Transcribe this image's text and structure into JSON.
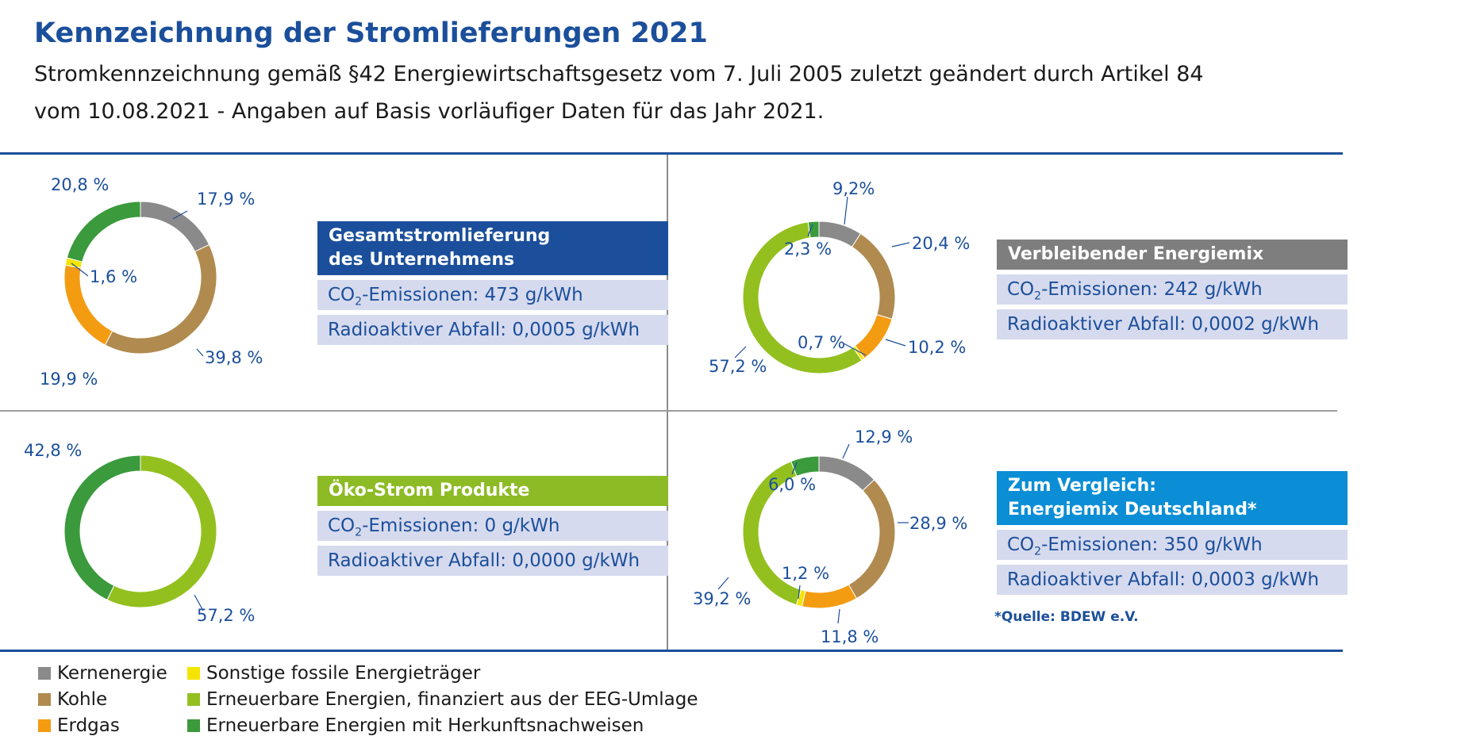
{
  "header": {
    "title": "Kennzeichnung der Stromlieferungen 2021",
    "subtitle_line1": "Stromkennzeichnung gemäß §42 Energiewirtschaftsgesetz vom 7. Juli 2005 zuletzt geändert durch Artikel 84",
    "subtitle_line2": "vom 10.08.2021 - Angaben auf Basis vorläufiger Daten für das Jahr 2021."
  },
  "colors": {
    "kernenergie": "#8a8a8a",
    "kohle": "#b08a4f",
    "erdgas": "#f39c12",
    "sonstige": "#f5e400",
    "eeg": "#93c01f",
    "herkunft": "#3a9a3c",
    "title_blue": "#1b4f9b"
  },
  "chart_data": [
    {
      "type": "pie",
      "style": "donut",
      "categories": [
        "Kernenergie",
        "Kohle",
        "Erdgas",
        "Sonstige fossile Energieträger",
        "Erneuerbare Energien mit Herkunftsnachweisen"
      ],
      "values": [
        17.9,
        39.8,
        19.9,
        1.6,
        20.8
      ],
      "value_labels": [
        "17,9 %",
        "39,8 %",
        "19,9 %",
        "1,6 %",
        "20,8 %"
      ],
      "card": {
        "title_line1": "Gesamtstromlieferung",
        "title_line2": "des Unternehmens",
        "co2_label": "CO",
        "co2_sub": "2",
        "co2_value": "-Emissionen: 473 g/kWh",
        "waste": "Radioaktiver Abfall: 0,0005 g/kWh"
      }
    },
    {
      "type": "pie",
      "style": "donut",
      "categories": [
        "Kernenergie",
        "Kohle",
        "Erdgas",
        "Sonstige fossile Energieträger",
        "Erneuerbare Energien, finanziert aus der EEG-Umlage",
        "Erneuerbare Energien mit Herkunftsnachweisen"
      ],
      "values": [
        9.2,
        20.4,
        10.2,
        0.7,
        57.2,
        2.3
      ],
      "value_labels": [
        "9,2%",
        "20,4 %",
        "10,2 %",
        "0,7 %",
        "57,2 %",
        "2,3 %"
      ],
      "card": {
        "title_line1": "Verbleibender Energiemix",
        "co2_label": "CO",
        "co2_sub": "2",
        "co2_value": "-Emissionen: 242 g/kWh",
        "waste": "Radioaktiver Abfall:  0,0002 g/kWh"
      }
    },
    {
      "type": "pie",
      "style": "donut",
      "categories": [
        "Erneuerbare Energien, finanziert aus der EEG-Umlage",
        "Erneuerbare Energien mit Herkunftsnachweisen"
      ],
      "values": [
        57.2,
        42.8
      ],
      "value_labels": [
        "57,2 %",
        "42,8 %"
      ],
      "card": {
        "title_line1": "Öko-Strom Produkte",
        "co2_label": "CO",
        "co2_sub": "2",
        "co2_value": "-Emissionen: 0 g/kWh",
        "waste": "Radioaktiver Abfall:  0,0000 g/kWh"
      }
    },
    {
      "type": "pie",
      "style": "donut",
      "categories": [
        "Kernenergie",
        "Kohle",
        "Erdgas",
        "Sonstige fossile Energieträger",
        "Erneuerbare Energien, finanziert aus der EEG-Umlage",
        "Erneuerbare Energien mit Herkunftsnachweisen"
      ],
      "values": [
        12.9,
        28.9,
        11.8,
        1.2,
        39.2,
        6.0
      ],
      "value_labels": [
        "12,9 %",
        "28,9 %",
        "11,8 %",
        "1,2 %",
        "39,2 %",
        "6,0 %"
      ],
      "card": {
        "title_line1": "Zum Vergleich:",
        "title_line2": "Energiemix Deutschland*",
        "co2_label": "CO",
        "co2_sub": "2",
        "co2_value": "-Emissionen: 350 g/kWh",
        "waste": "Radioaktiver Abfall:  0,0003 g/kWh"
      }
    }
  ],
  "source_note": "*Quelle: BDEW e.V.",
  "legend": [
    {
      "label": "Kernenergie",
      "color": "#8a8a8a"
    },
    {
      "label": "Kohle",
      "color": "#b08a4f"
    },
    {
      "label": "Erdgas",
      "color": "#f39c12"
    },
    {
      "label": "Sonstige fossile Energieträger",
      "color": "#f5e400"
    },
    {
      "label": "Erneuerbare Energien, finanziert aus der EEG-Umlage",
      "color": "#93c01f"
    },
    {
      "label": "Erneuerbare Energien mit Herkunftsnachweisen",
      "color": "#3a9a3c"
    }
  ]
}
